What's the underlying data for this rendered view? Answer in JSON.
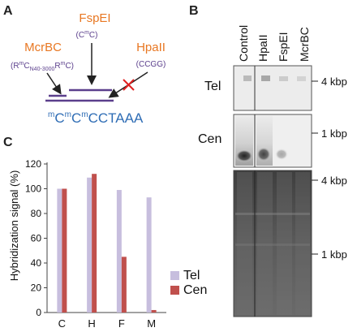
{
  "panel_a": {
    "label": "A",
    "fspei": {
      "name": "FspEI",
      "site_pre": "(C",
      "site_sup": "m",
      "site_post": "C)"
    },
    "mcrbc": {
      "name": "McrBC",
      "site_pre": "(R",
      "site_sup1": "m",
      "site_mid": "C",
      "site_sub": "N40-3000",
      "site_r": "R",
      "site_sup2": "m",
      "site_post": "C)"
    },
    "hpaii": {
      "name": "HpaII",
      "site": "(CCGG)"
    },
    "sequence": {
      "m1": "m",
      "c1": "C",
      "m2": "m",
      "c2": "C",
      "m3": "m",
      "c3": "C",
      "tail": "CTAAA"
    },
    "colors": {
      "enzyme": "#e87722",
      "site": "#5b3f8c",
      "sequence": "#2f6db5",
      "cross": "#e02020"
    }
  },
  "panel_b": {
    "label": "B",
    "lanes": [
      "Control",
      "HpaII",
      "FspEI",
      "McrBC"
    ],
    "rows": [
      "Tel",
      "Cen"
    ],
    "markers": {
      "tel": "4 kbp",
      "cen": "1 kbp",
      "gel_top": "4 kbp",
      "gel_bottom": "1 kbp"
    }
  },
  "panel_c": {
    "label": "C",
    "chart_data": {
      "type": "bar",
      "categories": [
        "C",
        "H",
        "F",
        "M"
      ],
      "series": [
        {
          "name": "Tel",
          "values": [
            100,
            109,
            99,
            93
          ],
          "color": "#c7bede"
        },
        {
          "name": "Cen",
          "values": [
            100,
            112,
            45,
            2
          ],
          "color": "#c0504d"
        }
      ],
      "ylabel": "Hybridization signal (%)",
      "ylim": [
        0,
        120
      ],
      "yticks": [
        0,
        20,
        40,
        60,
        80,
        100,
        120
      ],
      "grid": false,
      "legend": "bottom-right"
    }
  }
}
